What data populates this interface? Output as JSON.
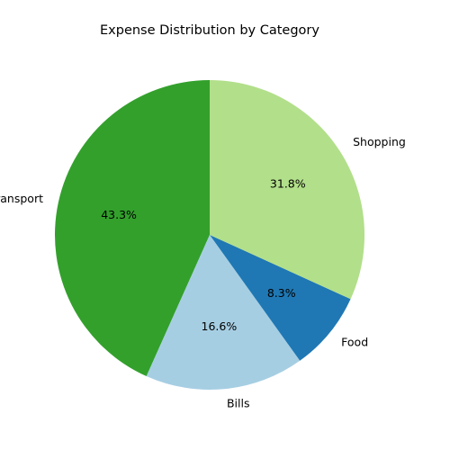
{
  "chart_data": {
    "type": "pie",
    "title": "Expense Distribution by Category",
    "categories": [
      "Transport",
      "Bills",
      "Food",
      "Shopping"
    ],
    "values": [
      43.3,
      16.6,
      8.3,
      31.8
    ],
    "value_labels": [
      "43.3%",
      "16.6%",
      "8.3%",
      "31.8%"
    ],
    "colors": [
      "#33a02c",
      "#a6cee3",
      "#1f78b4",
      "#b2df8a"
    ],
    "start_angle_deg": 90,
    "direction": "counterclockwise",
    "legend": "none"
  }
}
